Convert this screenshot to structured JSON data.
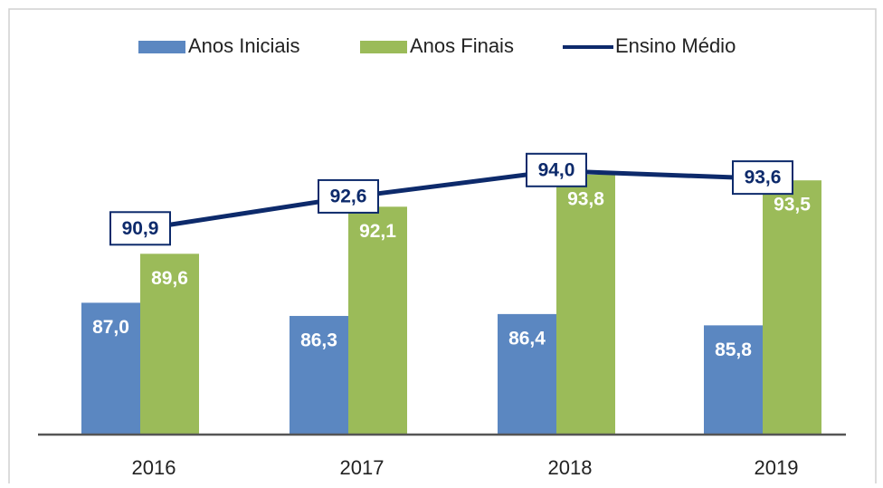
{
  "chart_data": {
    "type": "bar-line",
    "categories": [
      "2016",
      "2017",
      "2018",
      "2019"
    ],
    "series": [
      {
        "name": "Anos Iniciais",
        "type": "bar",
        "color": "#5b87c1",
        "values": [
          87.0,
          86.3,
          86.4,
          85.8
        ],
        "value_labels": [
          "87,0",
          "86,3",
          "86,4",
          "85,8"
        ]
      },
      {
        "name": "Anos Finais",
        "type": "bar",
        "color": "#9bbb59",
        "values": [
          89.6,
          92.1,
          93.8,
          93.5
        ],
        "value_labels": [
          "89,6",
          "92,1",
          "93,8",
          "93,5"
        ]
      },
      {
        "name": "Ensino Médio",
        "type": "line",
        "color": "#0d2a6b",
        "values": [
          90.9,
          92.6,
          94.0,
          93.6
        ],
        "value_labels": [
          "90,9",
          "92,6",
          "94,0",
          "93,6"
        ]
      }
    ],
    "ylim": [
      80,
      98
    ],
    "legend": "top"
  }
}
